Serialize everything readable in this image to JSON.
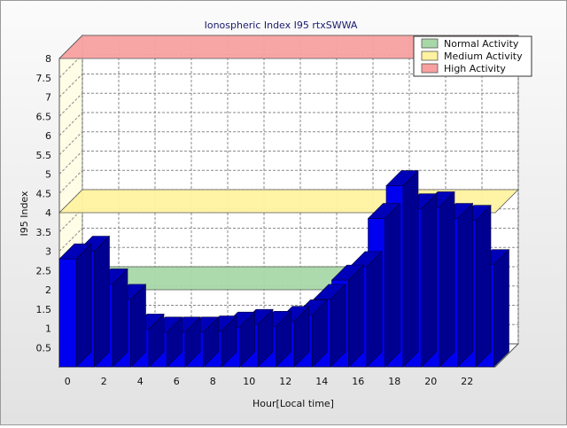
{
  "chart_data": {
    "type": "bar",
    "title": "Ionospheric Index I95 rtxSWWA",
    "xlabel": "Hour[Local time]",
    "ylabel": "I95 Index",
    "x_ticks": [
      "0",
      "2",
      "4",
      "6",
      "8",
      "10",
      "12",
      "14",
      "16",
      "18",
      "20",
      "22"
    ],
    "y_ticks": [
      "0.5",
      "1",
      "1.5",
      "2",
      "2.5",
      "3",
      "3.5",
      "4",
      "4.5",
      "5",
      "5.5",
      "6",
      "6.5",
      "7",
      "7.5",
      "8"
    ],
    "ylim": [
      0,
      8
    ],
    "hours": [
      0,
      1,
      2,
      3,
      4,
      5,
      6,
      7,
      8,
      9,
      10,
      11,
      12,
      13,
      14,
      15,
      16,
      17,
      18,
      19,
      20,
      21,
      22,
      23
    ],
    "values": [
      2.8,
      3.0,
      2.15,
      1.75,
      0.98,
      0.9,
      0.9,
      0.9,
      0.93,
      1.03,
      1.1,
      1.05,
      1.18,
      1.35,
      1.75,
      2.25,
      2.6,
      3.85,
      4.7,
      4.1,
      4.15,
      3.85,
      3.8,
      2.65
    ],
    "bar_color": "#0000f0",
    "bands": [
      {
        "name": "Normal Activity",
        "from": 2.0,
        "to": 2.0,
        "color": "#a8d8a8"
      },
      {
        "name": "Medium Activity",
        "from": 4.0,
        "to": 4.0,
        "color": "#fff2a0"
      },
      {
        "name": "High Activity",
        "from": 8.0,
        "to": 8.0,
        "color": "#f8a0a0"
      }
    ],
    "legend": {
      "position": "top-right",
      "entries": [
        {
          "label": "Normal Activity",
          "color": "#a8d8a8"
        },
        {
          "label": "Medium Activity",
          "color": "#fff2a0"
        },
        {
          "label": "High Activity",
          "color": "#f8a0a0"
        }
      ]
    },
    "grid": true
  }
}
